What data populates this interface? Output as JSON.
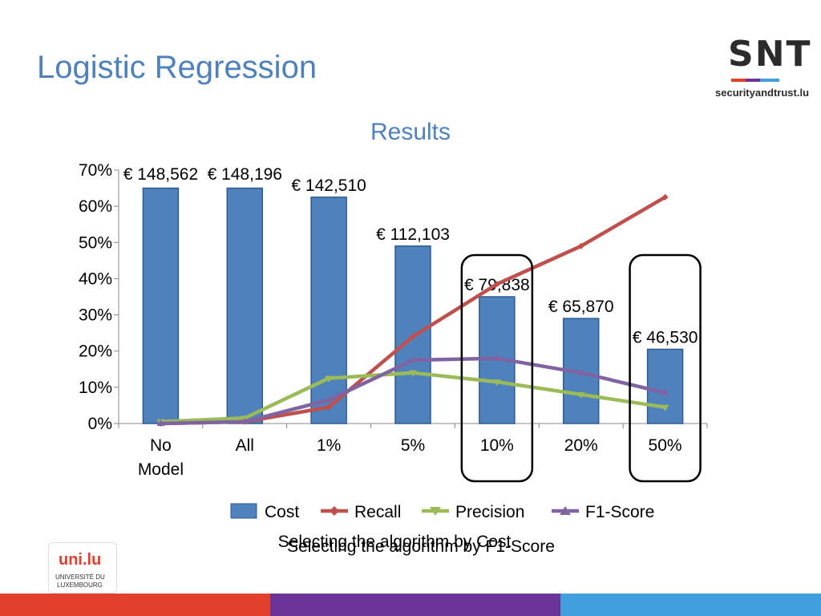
{
  "slide": {
    "title": "Logistic Regression",
    "caption_cost": "Selecting the algorithm by Cost",
    "caption_f1": "Selecting the algorithm by F1-Score"
  },
  "logos": {
    "snt_text": "SNT",
    "snt_subtext": "securityandtrust.lu",
    "uni_text": "uni.lu",
    "uni_subtext_1": "UNIVERSITÉ DU",
    "uni_subtext_2": "LUXEMBOURG"
  },
  "colors": {
    "cost": "#4f81bd",
    "recall": "#c0504d",
    "precision": "#9bbb59",
    "f1": "#8064a2",
    "footer_red": "#e1402d",
    "footer_purple": "#6a3596",
    "footer_blue": "#41a0dc"
  },
  "chart_data": {
    "type": "bar",
    "title": "Results",
    "categories": [
      "No Model",
      "All",
      "1%",
      "5%",
      "10%",
      "20%",
      "50%"
    ],
    "yticks": [
      "0%",
      "10%",
      "20%",
      "30%",
      "40%",
      "50%",
      "60%",
      "70%"
    ],
    "ylim": [
      0,
      70
    ],
    "grid": false,
    "legend_position": "bottom",
    "series": [
      {
        "name": "Cost",
        "kind": "bar",
        "values": [
          65,
          65,
          62.5,
          49,
          35,
          29,
          20.5
        ],
        "labels": [
          "€ 148,562",
          "€ 148,196",
          "€ 142,510",
          "€ 112,103",
          "€ 79,838",
          "€ 65,870",
          "€ 46,530"
        ]
      },
      {
        "name": "Recall",
        "kind": "line",
        "values": [
          0,
          0.5,
          4.5,
          24,
          38.5,
          49,
          62.5
        ]
      },
      {
        "name": "Precision",
        "kind": "line",
        "values": [
          0.5,
          1.5,
          12.5,
          14,
          11.5,
          8,
          4.5
        ]
      },
      {
        "name": "F1-Score",
        "kind": "line",
        "values": [
          0,
          0.5,
          6.5,
          17.5,
          18,
          14,
          8.5
        ]
      }
    ],
    "highlighted_categories": [
      "10%",
      "50%"
    ]
  }
}
